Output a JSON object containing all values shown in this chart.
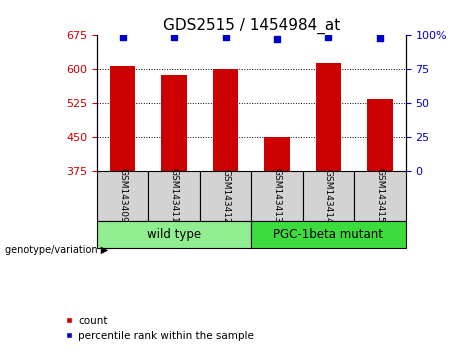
{
  "title": "GDS2515 / 1454984_at",
  "samples": [
    "GSM143409",
    "GSM143411",
    "GSM143412",
    "GSM143413",
    "GSM143414",
    "GSM143415"
  ],
  "counts": [
    608,
    588,
    601,
    450,
    614,
    534
  ],
  "percentiles": [
    99,
    99,
    99,
    97,
    99,
    98
  ],
  "left_ylim": [
    375,
    675
  ],
  "left_yticks": [
    375,
    450,
    525,
    600,
    675
  ],
  "right_ylim": [
    0,
    100
  ],
  "right_yticks": [
    0,
    25,
    50,
    75,
    100
  ],
  "bar_color": "#cc0000",
  "percentile_color": "#0000cc",
  "bar_width": 0.5,
  "groups": [
    {
      "label": "wild type",
      "indices": [
        0,
        1,
        2
      ],
      "color": "#90ee90"
    },
    {
      "label": "PGC-1beta mutant",
      "indices": [
        3,
        4,
        5
      ],
      "color": "#3ddc3d"
    }
  ],
  "group_label_prefix": "genotype/variation",
  "legend_count_label": "count",
  "legend_percentile_label": "percentile rank within the sample",
  "title_fontsize": 11,
  "tick_label_color_left": "#cc0000",
  "tick_label_color_right": "#0000cc",
  "sample_box_color": "#d3d3d3",
  "sample_label_fontsize": 6.5,
  "group_label_fontsize": 8.5,
  "dotted_lines": [
    450,
    525,
    600
  ],
  "legend_fontsize": 7.5
}
